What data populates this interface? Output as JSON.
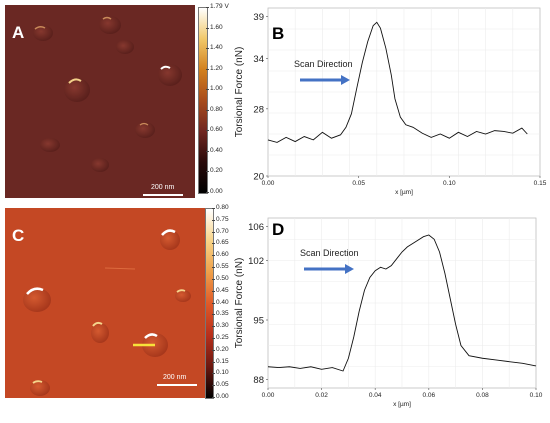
{
  "panels": {
    "a": {
      "letter": "A",
      "scalebar_label": "200 nm",
      "colorbar_ticks": [
        "1.79 V",
        "1.60",
        "1.40",
        "1.20",
        "1.00",
        "0.80",
        "0.60",
        "0.40",
        "0.20",
        "0.00"
      ],
      "colorbar_colors": [
        "#ffffff",
        "#f1c86a",
        "#d2801e",
        "#a84b1c",
        "#702620",
        "#2a0a0a",
        "#000000"
      ]
    },
    "c": {
      "letter": "C",
      "scalebar_label": "200 nm",
      "colorbar_ticks": [
        "0.80",
        "0.75",
        "0.70",
        "0.65",
        "0.60",
        "0.55",
        "0.50",
        "0.45",
        "0.40",
        "0.35",
        "0.30",
        "0.25",
        "0.20",
        "0.15",
        "0.10",
        "0.05",
        "0.00"
      ],
      "colorbar_colors": [
        "#ffffff",
        "#f8d488",
        "#eea04a",
        "#e05a28",
        "#b8301c",
        "#6c1810",
        "#000000"
      ]
    },
    "b": {
      "letter": "B",
      "annotation": "Scan Direction",
      "arrow_color": "#4472c4"
    },
    "d": {
      "letter": "D",
      "annotation": "Scan Direction",
      "arrow_color": "#4472c4"
    }
  },
  "chart_data": [
    {
      "type": "line",
      "panel": "B",
      "xlabel": "x [µm]",
      "ylabel": "Torsional Force (nN)",
      "xlim": [
        0,
        0.15
      ],
      "ylim": [
        20,
        40
      ],
      "xticks": [
        "0.00",
        "0.05",
        "0.10",
        "0.15"
      ],
      "yticks": [
        "20",
        "28",
        "34",
        "39"
      ],
      "grid": true,
      "series": [
        {
          "x": [
            0.0,
            0.005,
            0.01,
            0.015,
            0.02,
            0.025,
            0.03,
            0.035,
            0.04,
            0.043,
            0.046,
            0.049,
            0.052,
            0.055,
            0.058,
            0.06,
            0.062,
            0.065,
            0.068,
            0.07,
            0.073,
            0.076,
            0.08,
            0.085,
            0.09,
            0.095,
            0.1,
            0.105,
            0.11,
            0.115,
            0.12,
            0.125,
            0.13,
            0.135,
            0.14,
            0.143
          ],
          "y": [
            24.3,
            24.0,
            24.6,
            24.1,
            24.7,
            24.3,
            25.2,
            24.5,
            24.9,
            25.8,
            27.4,
            30.5,
            33.5,
            36.0,
            37.9,
            38.3,
            37.6,
            35.2,
            32.0,
            29.2,
            27.0,
            26.1,
            25.8,
            25.1,
            24.6,
            25.0,
            24.5,
            25.2,
            24.7,
            25.3,
            25.0,
            25.4,
            25.3,
            25.1,
            25.7,
            25.0
          ]
        }
      ]
    },
    {
      "type": "line",
      "panel": "D",
      "xlabel": "x [µm]",
      "ylabel": "Torsional Force (nN)",
      "xlim": [
        0,
        0.1
      ],
      "ylim": [
        87,
        107
      ],
      "xticks": [
        "0.00",
        "0.02",
        "0.04",
        "0.06",
        "0.08",
        "0.10"
      ],
      "yticks": [
        "88",
        "95",
        "102",
        "106"
      ],
      "grid": true,
      "series": [
        {
          "x": [
            0.0,
            0.004,
            0.008,
            0.012,
            0.016,
            0.02,
            0.024,
            0.028,
            0.03,
            0.032,
            0.034,
            0.036,
            0.038,
            0.04,
            0.042,
            0.044,
            0.046,
            0.048,
            0.05,
            0.052,
            0.054,
            0.056,
            0.058,
            0.06,
            0.062,
            0.064,
            0.066,
            0.068,
            0.07,
            0.072,
            0.075,
            0.08,
            0.085,
            0.09,
            0.095,
            0.1
          ],
          "y": [
            89.5,
            89.4,
            89.5,
            89.3,
            89.5,
            89.2,
            89.4,
            89.0,
            90.5,
            93.0,
            96.0,
            98.5,
            100.0,
            100.8,
            101.2,
            101.0,
            101.4,
            102.2,
            103.0,
            103.6,
            104.0,
            104.4,
            104.8,
            105.0,
            104.5,
            103.0,
            100.5,
            97.5,
            94.5,
            92.0,
            90.8,
            90.5,
            90.3,
            90.1,
            89.9,
            89.6
          ]
        }
      ]
    }
  ]
}
